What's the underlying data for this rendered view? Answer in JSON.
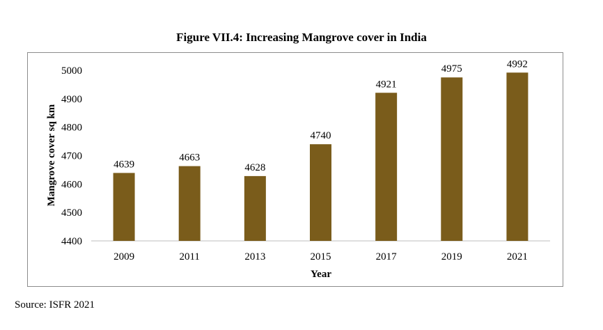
{
  "figure": {
    "title": "Figure VII.4: Increasing Mangrove cover in India",
    "source": "Source: ISFR 2021"
  },
  "colors": {
    "bar": "#7a5c1b",
    "axis": "#bfbfbf",
    "frame": "#8c8c8c"
  },
  "chart_data": {
    "type": "bar",
    "title": "Figure VII.4: Increasing Mangrove cover in India",
    "xlabel": "Year",
    "ylabel": "Mangrove cover sq km",
    "categories": [
      "2009",
      "2011",
      "2013",
      "2015",
      "2017",
      "2019",
      "2021"
    ],
    "values": [
      4639,
      4663,
      4628,
      4740,
      4921,
      4975,
      4992
    ],
    "data_labels": [
      "4639",
      "4663",
      "4628",
      "4740",
      "4921",
      "4975",
      "4992"
    ],
    "ylim": [
      4400,
      5000
    ],
    "yticks": [
      4400,
      4500,
      4600,
      4700,
      4800,
      4900,
      5000
    ],
    "grid": false,
    "legend": "none"
  }
}
